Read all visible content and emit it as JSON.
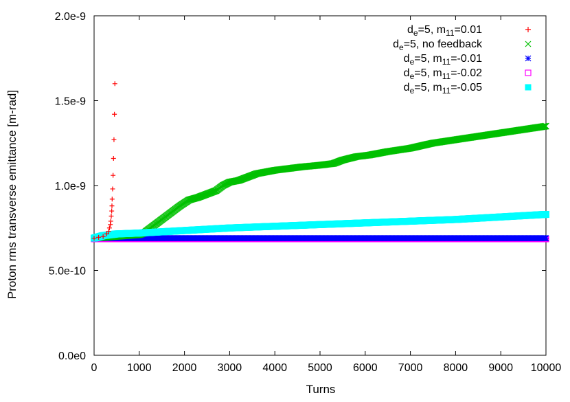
{
  "chart_data": {
    "type": "scatter",
    "title": "",
    "xlabel": "Turns",
    "ylabel": "Proton rms transverse emittance [m-rad]",
    "xlim": [
      0,
      10000
    ],
    "ylim": [
      0,
      2e-09
    ],
    "xticks": [
      0,
      1000,
      2000,
      3000,
      4000,
      5000,
      6000,
      7000,
      8000,
      9000,
      10000
    ],
    "xtick_labels": [
      "0",
      "1000",
      "2000",
      "3000",
      "4000",
      "5000",
      "6000",
      "7000",
      "8000",
      "9000",
      "10000"
    ],
    "yticks": [
      0,
      5e-10,
      1e-09,
      1.5e-09,
      2e-09
    ],
    "ytick_labels": [
      "0.0e0",
      "5.0e-10",
      "1.0e-9",
      "1.5e-9",
      "2.0e-9"
    ],
    "grid": false,
    "legend_position": "top-right",
    "series": [
      {
        "name": "d_e=5, m_11=0.01",
        "legend": {
          "base1": "d",
          "sub1": "e",
          "mid": "=5, m",
          "sub2": "11",
          "tail": "=0.01"
        },
        "color": "#ff0000",
        "marker": "plus",
        "x": [
          0,
          100,
          200,
          280,
          320,
          340,
          360,
          370,
          380,
          390,
          395,
          400,
          410,
          420,
          430,
          440,
          450,
          460
        ],
        "y": [
          6.9e-10,
          6.95e-10,
          7e-10,
          7.15e-10,
          7.3e-10,
          7.5e-10,
          7.7e-10,
          7.9e-10,
          8.2e-10,
          8.5e-10,
          8.8e-10,
          9.2e-10,
          9.8e-10,
          1.06e-09,
          1.16e-09,
          1.27e-09,
          1.42e-09,
          1.6e-09
        ]
      },
      {
        "name": "d_e=5, no feedback",
        "legend": {
          "base1": "d",
          "sub1": "e",
          "mid": "=5, no feedback",
          "sub2": "",
          "tail": ""
        },
        "color": "#00c000",
        "marker": "cross",
        "x": [
          0,
          500,
          1000,
          1100,
          1300,
          1500,
          1700,
          1900,
          2100,
          2300,
          2500,
          2700,
          2850,
          3000,
          3200,
          3400,
          3600,
          3800,
          4000,
          4300,
          4600,
          5000,
          5300,
          5500,
          5800,
          6100,
          6500,
          7000,
          7500,
          8000,
          8500,
          9000,
          9500,
          10000
        ],
        "y": [
          6.9e-10,
          7e-10,
          7.1e-10,
          7.2e-10,
          7.6e-10,
          8e-10,
          8.4e-10,
          8.8e-10,
          9.15e-10,
          9.3e-10,
          9.5e-10,
          9.7e-10,
          1e-09,
          1.02e-09,
          1.03e-09,
          1.05e-09,
          1.07e-09,
          1.08e-09,
          1.09e-09,
          1.1e-09,
          1.11e-09,
          1.12e-09,
          1.13e-09,
          1.15e-09,
          1.17e-09,
          1.18e-09,
          1.2e-09,
          1.22e-09,
          1.25e-09,
          1.27e-09,
          1.29e-09,
          1.31e-09,
          1.33e-09,
          1.35e-09
        ]
      },
      {
        "name": "d_e=5, m_11=-0.01",
        "legend": {
          "base1": "d",
          "sub1": "e",
          "mid": "=5, m",
          "sub2": "11",
          "tail": "=-0.01"
        },
        "color": "#0000ff",
        "marker": "star",
        "x": [
          0,
          500,
          1000,
          2000,
          3000,
          4000,
          5000,
          6000,
          7000,
          8000,
          9000,
          10000
        ],
        "y": [
          6.9e-10,
          6.9e-10,
          6.9e-10,
          6.9e-10,
          6.9e-10,
          6.9e-10,
          6.9e-10,
          6.9e-10,
          6.9e-10,
          6.9e-10,
          6.9e-10,
          6.9e-10
        ]
      },
      {
        "name": "d_e=5, m_11=-0.02",
        "legend": {
          "base1": "d",
          "sub1": "e",
          "mid": "=5, m",
          "sub2": "11",
          "tail": "=-0.02"
        },
        "color": "#ff00ff",
        "marker": "square-open",
        "x": [
          0,
          500,
          1000,
          2000,
          3000,
          4000,
          5000,
          6000,
          7000,
          8000,
          9000,
          10000
        ],
        "y": [
          6.85e-10,
          6.85e-10,
          6.85e-10,
          6.85e-10,
          6.85e-10,
          6.85e-10,
          6.85e-10,
          6.85e-10,
          6.85e-10,
          6.85e-10,
          6.85e-10,
          6.85e-10
        ]
      },
      {
        "name": "d_e=5, m_11=-0.05",
        "legend": {
          "base1": "d",
          "sub1": "e",
          "mid": "=5, m",
          "sub2": "11",
          "tail": "=-0.05"
        },
        "color": "#00ffff",
        "marker": "square-filled",
        "x": [
          0,
          200,
          500,
          1000,
          2000,
          3000,
          4000,
          5000,
          6000,
          7000,
          8000,
          9000,
          10000
        ],
        "y": [
          6.9e-10,
          7.05e-10,
          7.15e-10,
          7.2e-10,
          7.35e-10,
          7.5e-10,
          7.6e-10,
          7.7e-10,
          7.8e-10,
          7.9e-10,
          8e-10,
          8.15e-10,
          8.3e-10
        ]
      }
    ]
  }
}
